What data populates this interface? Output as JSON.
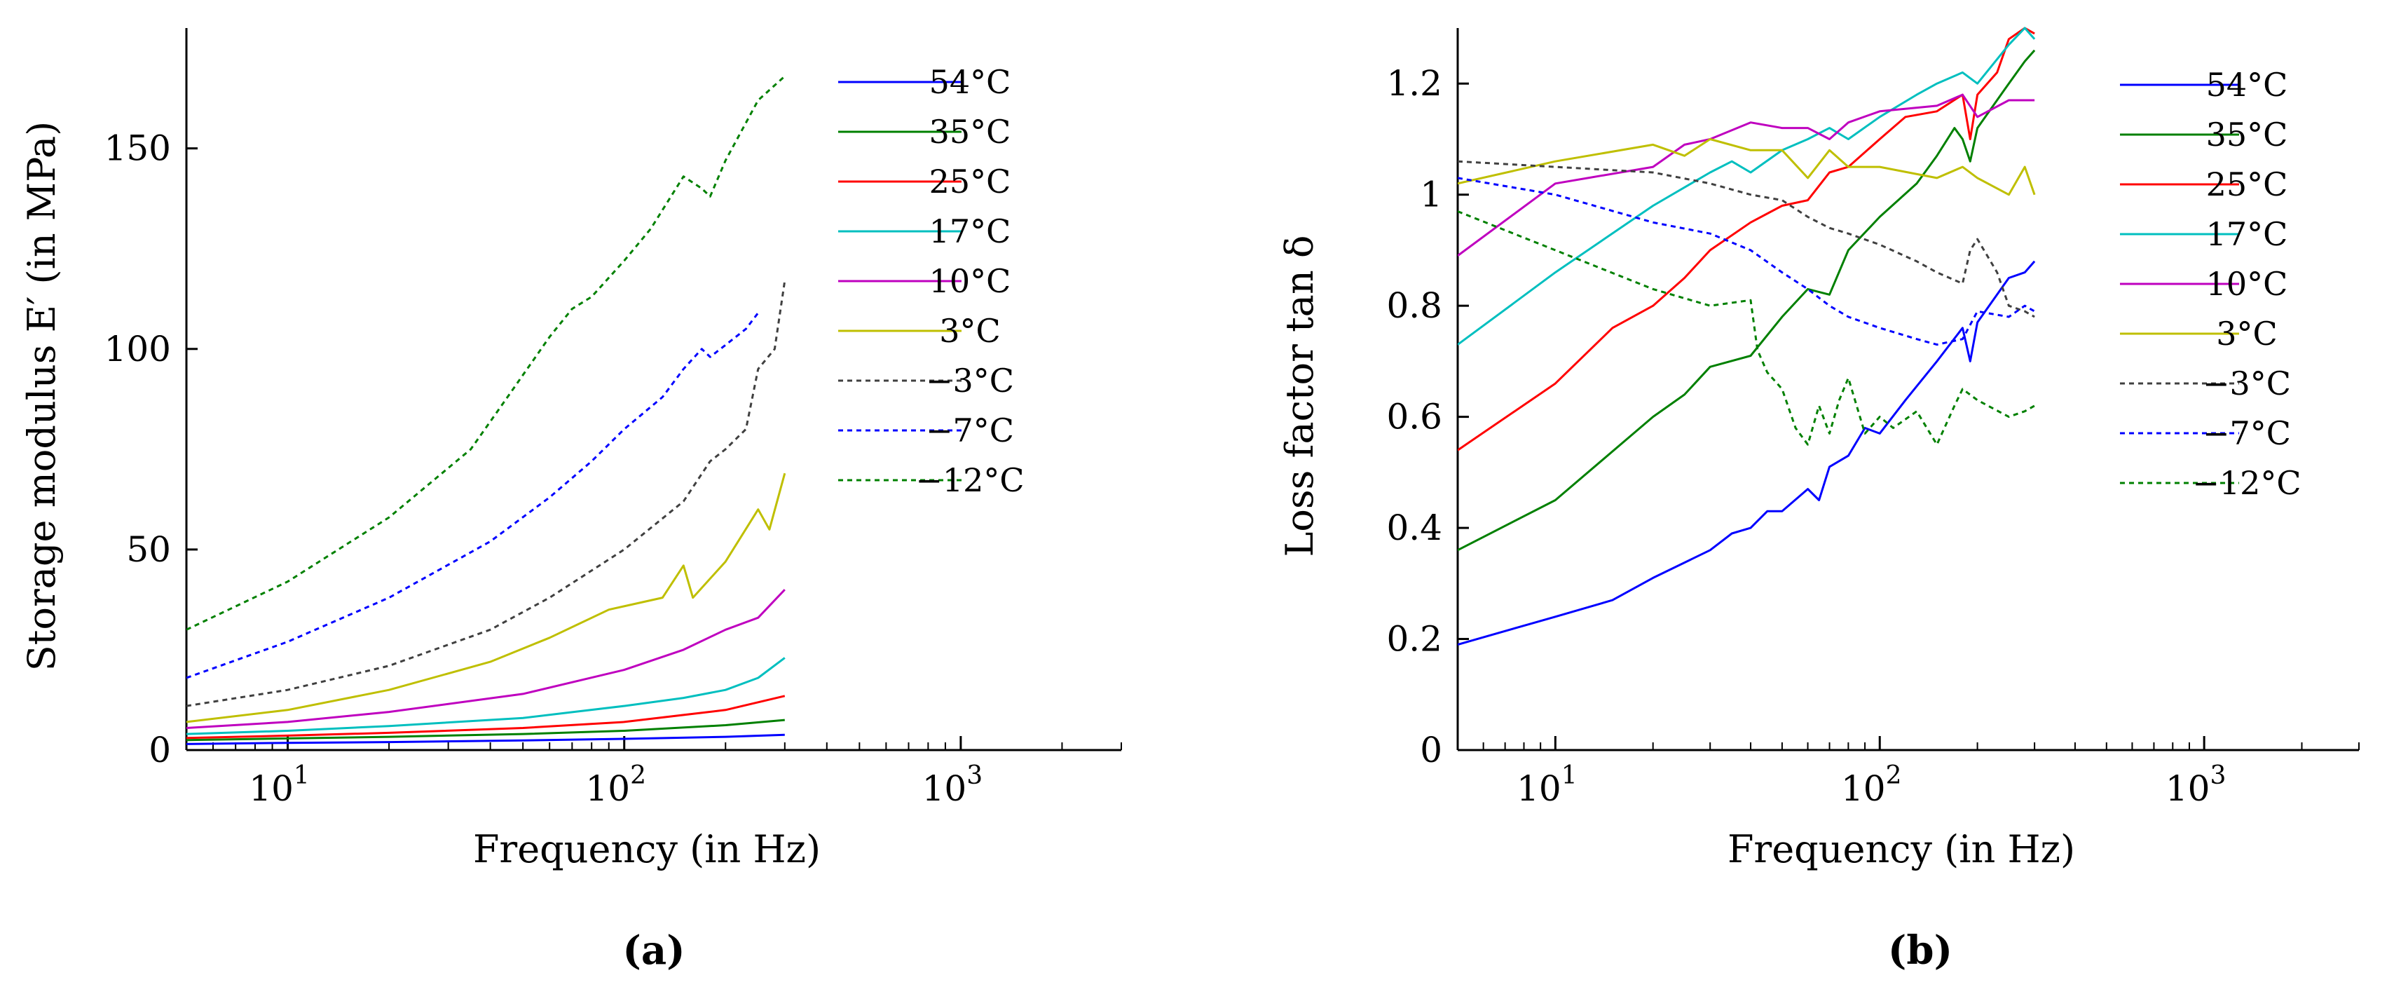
{
  "chart_data": [
    {
      "type": "line",
      "panel_label": "(a)",
      "xlabel": "Frequency (in Hz)",
      "ylabel": "Storage modulus E′ (in MPa)",
      "xscale": "log",
      "xlim": [
        5,
        3000
      ],
      "ylim": [
        0,
        180
      ],
      "xticks": [
        10,
        100,
        1000
      ],
      "xtick_labels": [
        "10",
        "10",
        "10"
      ],
      "xtick_exponents": [
        "1",
        "2",
        "3"
      ],
      "yticks": [
        0,
        50,
        100,
        150
      ],
      "ytick_labels": [
        "0",
        "50",
        "100",
        "150"
      ],
      "grid": false,
      "legend_position": "right",
      "series": [
        {
          "name": "54°C",
          "color": "#0000ff",
          "dash": "solid",
          "x": [
            5,
            10,
            20,
            50,
            100,
            200,
            300
          ],
          "y": [
            1.5,
            1.8,
            2.0,
            2.4,
            2.8,
            3.3,
            3.8
          ]
        },
        {
          "name": "35°C",
          "color": "#008000",
          "dash": "solid",
          "x": [
            5,
            10,
            20,
            50,
            100,
            200,
            300
          ],
          "y": [
            2.5,
            2.9,
            3.3,
            4.0,
            4.8,
            6.2,
            7.5
          ]
        },
        {
          "name": "25°C",
          "color": "#ff0000",
          "dash": "solid",
          "x": [
            5,
            10,
            20,
            50,
            100,
            200,
            300
          ],
          "y": [
            3.0,
            3.6,
            4.3,
            5.5,
            7.0,
            10.0,
            13.5
          ]
        },
        {
          "name": "17°C",
          "color": "#00bfbf",
          "dash": "solid",
          "x": [
            5,
            10,
            20,
            50,
            100,
            150,
            200,
            250,
            300
          ],
          "y": [
            4.0,
            4.8,
            6.0,
            8.0,
            11.0,
            13.0,
            15.0,
            18.0,
            23.0
          ]
        },
        {
          "name": "10°C",
          "color": "#bf00bf",
          "dash": "solid",
          "x": [
            5,
            10,
            20,
            50,
            100,
            150,
            200,
            250,
            300
          ],
          "y": [
            5.5,
            7.0,
            9.5,
            14.0,
            20.0,
            25.0,
            30.0,
            33.0,
            40.0
          ]
        },
        {
          "name": "3°C",
          "color": "#bfbf00",
          "dash": "solid",
          "x": [
            5,
            10,
            20,
            40,
            60,
            90,
            130,
            150,
            160,
            200,
            250,
            270,
            300
          ],
          "y": [
            7.0,
            10.0,
            15.0,
            22.0,
            28.0,
            35.0,
            38.0,
            46.0,
            38.0,
            47.0,
            60.0,
            55.0,
            69.0
          ]
        },
        {
          "name": "−3°C",
          "color": "#404040",
          "dash": "dotted",
          "x": [
            5,
            10,
            20,
            40,
            60,
            100,
            150,
            180,
            200,
            230,
            250,
            280,
            300
          ],
          "y": [
            11.0,
            15.0,
            21.0,
            30.0,
            38.0,
            50.0,
            62.0,
            72.0,
            75.0,
            80.0,
            95.0,
            100.0,
            117.0
          ]
        },
        {
          "name": "−7°C",
          "color": "#0000ff",
          "dash": "dotted",
          "x": [
            5,
            10,
            20,
            40,
            60,
            80,
            100,
            130,
            150,
            170,
            180,
            200,
            230,
            250
          ],
          "y": [
            18.0,
            27.0,
            38.0,
            52.0,
            63.0,
            72.0,
            80.0,
            88.0,
            95.0,
            100.0,
            98.0,
            101.0,
            105.0,
            109.0
          ]
        },
        {
          "name": "−12°C",
          "color": "#008000",
          "dash": "dotted",
          "x": [
            5,
            10,
            20,
            35,
            45,
            60,
            70,
            80,
            100,
            120,
            150,
            170,
            180,
            200,
            250,
            300
          ],
          "y": [
            30.0,
            42.0,
            58.0,
            75.0,
            88.0,
            103.0,
            110.0,
            113.0,
            122.0,
            130.0,
            143.0,
            140.0,
            138.0,
            147.0,
            162.0,
            168.0
          ]
        }
      ]
    },
    {
      "type": "line",
      "panel_label": "(b)",
      "xlabel": "Frequency (in Hz)",
      "ylabel": "Loss factor tan δ",
      "xscale": "log",
      "xlim": [
        5,
        3000
      ],
      "ylim": [
        0,
        1.3
      ],
      "xticks": [
        10,
        100,
        1000
      ],
      "xtick_labels": [
        "10",
        "10",
        "10"
      ],
      "xtick_exponents": [
        "1",
        "2",
        "3"
      ],
      "yticks": [
        0,
        0.2,
        0.4,
        0.6,
        0.8,
        1,
        1.2
      ],
      "ytick_labels": [
        "0",
        "0.2",
        "0.4",
        "0.6",
        "0.8",
        "1",
        "1.2"
      ],
      "grid": false,
      "legend_position": "right",
      "series": [
        {
          "name": "54°C",
          "color": "#0000ff",
          "dash": "solid",
          "x": [
            5,
            10,
            15,
            20,
            30,
            35,
            40,
            45,
            50,
            60,
            65,
            70,
            80,
            90,
            100,
            120,
            150,
            180,
            190,
            200,
            250,
            280,
            300
          ],
          "y": [
            0.19,
            0.24,
            0.27,
            0.31,
            0.36,
            0.39,
            0.4,
            0.43,
            0.43,
            0.47,
            0.45,
            0.51,
            0.53,
            0.58,
            0.57,
            0.63,
            0.7,
            0.76,
            0.7,
            0.77,
            0.85,
            0.86,
            0.88
          ]
        },
        {
          "name": "35°C",
          "color": "#008000",
          "dash": "solid",
          "x": [
            5,
            10,
            20,
            25,
            30,
            40,
            50,
            60,
            70,
            80,
            100,
            130,
            150,
            170,
            180,
            190,
            200,
            250,
            280,
            300
          ],
          "y": [
            0.36,
            0.45,
            0.6,
            0.64,
            0.69,
            0.71,
            0.78,
            0.83,
            0.82,
            0.9,
            0.96,
            1.02,
            1.07,
            1.12,
            1.1,
            1.06,
            1.12,
            1.2,
            1.24,
            1.26
          ]
        },
        {
          "name": "25°C",
          "color": "#ff0000",
          "dash": "solid",
          "x": [
            5,
            10,
            15,
            20,
            25,
            30,
            40,
            50,
            60,
            70,
            80,
            100,
            120,
            150,
            180,
            190,
            200,
            230,
            250,
            280,
            300
          ],
          "y": [
            0.54,
            0.66,
            0.76,
            0.8,
            0.85,
            0.9,
            0.95,
            0.98,
            0.99,
            1.04,
            1.05,
            1.1,
            1.14,
            1.15,
            1.18,
            1.1,
            1.18,
            1.22,
            1.28,
            1.3,
            1.29
          ]
        },
        {
          "name": "17°C",
          "color": "#00bfbf",
          "dash": "solid",
          "x": [
            5,
            10,
            20,
            30,
            35,
            40,
            50,
            60,
            70,
            80,
            100,
            130,
            150,
            180,
            200,
            250,
            280,
            300
          ],
          "y": [
            0.73,
            0.86,
            0.98,
            1.04,
            1.06,
            1.04,
            1.08,
            1.1,
            1.12,
            1.1,
            1.14,
            1.18,
            1.2,
            1.22,
            1.2,
            1.27,
            1.3,
            1.28
          ]
        },
        {
          "name": "10°C",
          "color": "#bf00bf",
          "dash": "solid",
          "x": [
            5,
            10,
            20,
            25,
            30,
            40,
            50,
            60,
            70,
            80,
            100,
            150,
            180,
            200,
            250,
            280,
            300
          ],
          "y": [
            0.89,
            1.02,
            1.05,
            1.09,
            1.1,
            1.13,
            1.12,
            1.12,
            1.1,
            1.13,
            1.15,
            1.16,
            1.18,
            1.14,
            1.17,
            1.17,
            1.17
          ]
        },
        {
          "name": "3°C",
          "color": "#bfbf00",
          "dash": "solid",
          "x": [
            5,
            10,
            20,
            25,
            30,
            40,
            50,
            60,
            70,
            80,
            100,
            150,
            180,
            200,
            250,
            280,
            300
          ],
          "y": [
            1.02,
            1.06,
            1.09,
            1.07,
            1.1,
            1.08,
            1.08,
            1.03,
            1.08,
            1.05,
            1.05,
            1.03,
            1.05,
            1.03,
            1.0,
            1.05,
            1.0
          ]
        },
        {
          "name": "−3°C",
          "color": "#404040",
          "dash": "dotted",
          "x": [
            5,
            10,
            20,
            30,
            40,
            50,
            60,
            70,
            80,
            100,
            130,
            150,
            180,
            190,
            200,
            230,
            250,
            280,
            300
          ],
          "y": [
            1.06,
            1.05,
            1.04,
            1.02,
            1.0,
            0.99,
            0.96,
            0.94,
            0.93,
            0.91,
            0.88,
            0.86,
            0.84,
            0.9,
            0.92,
            0.86,
            0.8,
            0.79,
            0.78
          ]
        },
        {
          "name": "−7°C",
          "color": "#0000ff",
          "dash": "dotted",
          "x": [
            5,
            10,
            20,
            30,
            40,
            50,
            60,
            70,
            80,
            100,
            130,
            150,
            180,
            200,
            250,
            280,
            300
          ],
          "y": [
            1.03,
            1.0,
            0.95,
            0.93,
            0.9,
            0.86,
            0.83,
            0.8,
            0.78,
            0.76,
            0.74,
            0.73,
            0.74,
            0.79,
            0.78,
            0.8,
            0.79
          ]
        },
        {
          "name": "−12°C",
          "color": "#008000",
          "dash": "dotted",
          "x": [
            5,
            10,
            20,
            30,
            40,
            42,
            45,
            50,
            55,
            60,
            65,
            70,
            75,
            80,
            90,
            100,
            110,
            130,
            150,
            170,
            180,
            200,
            250,
            280,
            300
          ],
          "y": [
            0.97,
            0.9,
            0.83,
            0.8,
            0.81,
            0.72,
            0.68,
            0.65,
            0.58,
            0.55,
            0.62,
            0.57,
            0.63,
            0.67,
            0.57,
            0.6,
            0.58,
            0.61,
            0.55,
            0.62,
            0.65,
            0.63,
            0.6,
            0.61,
            0.62
          ]
        }
      ]
    }
  ]
}
